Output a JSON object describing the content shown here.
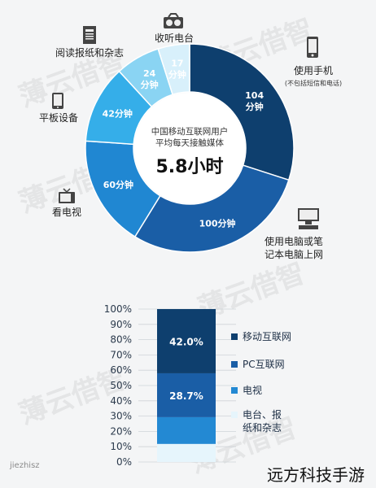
{
  "chart_data": [
    {
      "type": "pie",
      "center_title": "中国移动互联网用户\n平均每天接触媒体",
      "center_value": "5.8小时",
      "slices": [
        {
          "label": "使用手机",
          "sublabel": "(不包括短信和电话)",
          "value": 104,
          "value_label": "104\n分钟",
          "color": "#0e3f6e"
        },
        {
          "label": "使用电脑或笔\n记本电脑上网",
          "value": 100,
          "value_label": "100分钟",
          "color": "#1a5ea6"
        },
        {
          "label": "看电视",
          "value": 60,
          "value_label": "60分钟",
          "color": "#2087d2"
        },
        {
          "label": "平板设备",
          "value": 42,
          "value_label": "42分钟",
          "color": "#35aee9"
        },
        {
          "label": "阅读报纸和杂志",
          "value": 24,
          "value_label": "24\n分钟",
          "color": "#8ad4f3"
        },
        {
          "label": "收听电台",
          "value": 17,
          "value_label": "17\n分钟",
          "color": "#d8f0fb"
        }
      ]
    },
    {
      "type": "bar",
      "stacked": true,
      "yticks": [
        "0%",
        "10%",
        "20%",
        "30%",
        "40%",
        "50%",
        "60%",
        "70%",
        "80%",
        "90%",
        "100%"
      ],
      "ylim": [
        0,
        100
      ],
      "series": [
        {
          "name": "电台、报\n纸和杂志",
          "value": 11.8,
          "value_label": "",
          "color": "#e6f5fc"
        },
        {
          "name": "电视",
          "value": 17.5,
          "value_label": "",
          "color": "#2389d3"
        },
        {
          "name": "PC互联网",
          "value": 28.7,
          "value_label": "28.7%",
          "color": "#1a5ea6"
        },
        {
          "name": "移动互联网",
          "value": 42.0,
          "value_label": "42.0%",
          "color": "#0e3f6e"
        }
      ],
      "legend_order": [
        "移动互联网",
        "PC互联网",
        "电视",
        "电台、报\n纸和杂志"
      ]
    }
  ],
  "watermark": "薄云借智",
  "footer": {
    "left": "jiezhisz",
    "right": "远方科技手游"
  }
}
